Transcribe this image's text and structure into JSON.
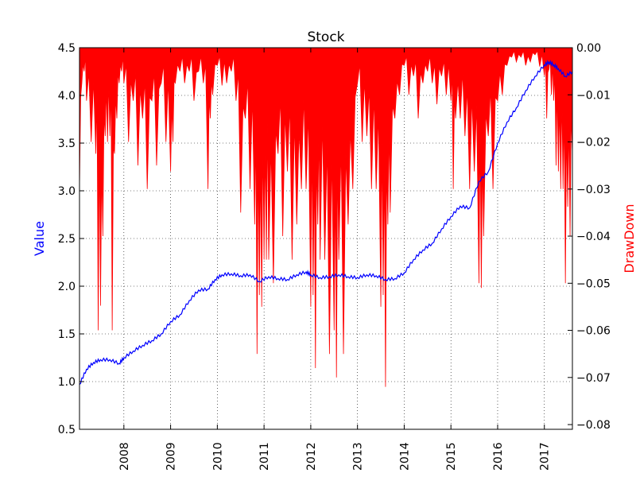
{
  "chart_data": {
    "type": "line",
    "title": "Stock",
    "xlabel": "",
    "ylabel": "Value",
    "y2label": "DrawDown",
    "grid": true,
    "colors": {
      "value": "#0000ff",
      "drawdown": "#ff0000",
      "ylabel": "#0000ff",
      "y2label": "#ff0000"
    },
    "xlim": [
      2007.05,
      2017.6
    ],
    "ylim": [
      0.5,
      4.5
    ],
    "y2lim": [
      -0.081,
      0.0
    ],
    "x_ticks": [
      2008,
      2009,
      2010,
      2011,
      2012,
      2013,
      2014,
      2015,
      2016,
      2017
    ],
    "x_tick_labels": [
      "2008",
      "2009",
      "2010",
      "2011",
      "2012",
      "2013",
      "2014",
      "2015",
      "2016",
      "2017"
    ],
    "y_ticks": [
      0.5,
      1.0,
      1.5,
      2.0,
      2.5,
      3.0,
      3.5,
      4.0,
      4.5
    ],
    "y_tick_labels": [
      "0.5",
      "1.0",
      "1.5",
      "2.0",
      "2.5",
      "3.0",
      "3.5",
      "4.0",
      "4.5"
    ],
    "y2_ticks": [
      0.0,
      -0.01,
      -0.02,
      -0.03,
      -0.04,
      -0.05,
      -0.06,
      -0.07,
      -0.08
    ],
    "y2_tick_labels": [
      "0.00",
      "−0.01",
      "−0.02",
      "−0.03",
      "−0.04",
      "−0.05",
      "−0.06",
      "−0.07",
      "−0.08"
    ],
    "series": [
      {
        "name": "Value",
        "axis": "left",
        "x": [
          2007.05,
          2007.2,
          2007.35,
          2007.5,
          2007.7,
          2007.9,
          2008.0,
          2008.2,
          2008.4,
          2008.6,
          2008.8,
          2009.0,
          2009.2,
          2009.4,
          2009.6,
          2009.8,
          2009.95,
          2010.1,
          2010.3,
          2010.5,
          2010.7,
          2010.9,
          2011.1,
          2011.3,
          2011.5,
          2011.7,
          2011.9,
          2012.0,
          2012.2,
          2012.4,
          2012.6,
          2012.8,
          2013.0,
          2013.2,
          2013.4,
          2013.6,
          2013.8,
          2014.0,
          2014.2,
          2014.4,
          2014.6,
          2014.8,
          2015.0,
          2015.2,
          2015.4,
          2015.6,
          2015.8,
          2016.0,
          2016.2,
          2016.4,
          2016.6,
          2016.8,
          2017.0,
          2017.1,
          2017.2,
          2017.3,
          2017.45,
          2017.6
        ],
        "values": [
          0.97,
          1.13,
          1.2,
          1.23,
          1.23,
          1.19,
          1.25,
          1.32,
          1.38,
          1.43,
          1.5,
          1.63,
          1.7,
          1.85,
          1.96,
          1.97,
          2.07,
          2.12,
          2.13,
          2.11,
          2.12,
          2.05,
          2.1,
          2.08,
          2.07,
          2.12,
          2.15,
          2.12,
          2.09,
          2.1,
          2.12,
          2.1,
          2.09,
          2.12,
          2.11,
          2.07,
          2.08,
          2.14,
          2.28,
          2.38,
          2.45,
          2.6,
          2.73,
          2.84,
          2.82,
          3.1,
          3.2,
          3.5,
          3.72,
          3.87,
          4.05,
          4.2,
          4.32,
          4.35,
          4.32,
          4.28,
          4.2,
          4.25
        ]
      },
      {
        "name": "DrawDown",
        "axis": "right",
        "x": [
          2007.05,
          2007.1,
          2007.15,
          2007.2,
          2007.3,
          2007.4,
          2007.45,
          2007.5,
          2007.55,
          2007.6,
          2007.65,
          2007.7,
          2007.75,
          2007.8,
          2007.85,
          2007.9,
          2007.95,
          2008.0,
          2008.1,
          2008.2,
          2008.3,
          2008.4,
          2008.5,
          2008.6,
          2008.7,
          2008.8,
          2008.9,
          2009.0,
          2009.05,
          2009.1,
          2009.2,
          2009.3,
          2009.4,
          2009.5,
          2009.6,
          2009.7,
          2009.8,
          2009.85,
          2009.9,
          2010.0,
          2010.1,
          2010.2,
          2010.3,
          2010.4,
          2010.5,
          2010.6,
          2010.7,
          2010.8,
          2010.85,
          2010.9,
          2010.95,
          2011.0,
          2011.05,
          2011.1,
          2011.2,
          2011.3,
          2011.4,
          2011.5,
          2011.6,
          2011.7,
          2011.8,
          2011.9,
          2012.0,
          2012.05,
          2012.1,
          2012.15,
          2012.2,
          2012.3,
          2012.4,
          2012.5,
          2012.55,
          2012.6,
          2012.7,
          2012.8,
          2012.9,
          2013.0,
          2013.1,
          2013.2,
          2013.3,
          2013.4,
          2013.5,
          2013.55,
          2013.6,
          2013.65,
          2013.7,
          2013.8,
          2013.9,
          2014.0,
          2014.1,
          2014.2,
          2014.3,
          2014.4,
          2014.5,
          2014.6,
          2014.7,
          2014.8,
          2014.9,
          2015.0,
          2015.05,
          2015.1,
          2015.2,
          2015.3,
          2015.4,
          2015.5,
          2015.6,
          2015.65,
          2015.7,
          2015.8,
          2015.9,
          2016.0,
          2016.1,
          2016.2,
          2016.3,
          2016.4,
          2016.5,
          2016.6,
          2016.7,
          2016.8,
          2016.9,
          2017.0,
          2017.05,
          2017.1,
          2017.15,
          2017.2,
          2017.25,
          2017.3,
          2017.35,
          2017.4,
          2017.45,
          2017.5,
          2017.55,
          2017.6
        ],
        "values": [
          -0.03,
          -0.01,
          -0.005,
          -0.015,
          -0.02,
          -0.03,
          -0.06,
          -0.073,
          -0.04,
          -0.025,
          -0.02,
          -0.025,
          -0.06,
          -0.03,
          -0.015,
          -0.01,
          -0.005,
          -0.01,
          -0.02,
          -0.015,
          -0.025,
          -0.02,
          -0.03,
          -0.015,
          -0.025,
          -0.01,
          -0.02,
          -0.035,
          -0.02,
          -0.01,
          -0.005,
          -0.01,
          -0.005,
          -0.015,
          -0.005,
          -0.01,
          -0.03,
          -0.02,
          -0.01,
          -0.005,
          -0.008,
          -0.01,
          -0.005,
          -0.015,
          -0.035,
          -0.02,
          -0.03,
          -0.05,
          -0.065,
          -0.07,
          -0.055,
          -0.06,
          -0.045,
          -0.06,
          -0.05,
          -0.03,
          -0.04,
          -0.035,
          -0.045,
          -0.05,
          -0.03,
          -0.04,
          -0.055,
          -0.07,
          -0.068,
          -0.05,
          -0.045,
          -0.06,
          -0.065,
          -0.08,
          -0.07,
          -0.06,
          -0.065,
          -0.05,
          -0.03,
          -0.01,
          -0.02,
          -0.025,
          -0.03,
          -0.04,
          -0.055,
          -0.07,
          -0.072,
          -0.05,
          -0.035,
          -0.02,
          -0.01,
          -0.005,
          -0.01,
          -0.008,
          -0.015,
          -0.01,
          -0.005,
          -0.01,
          -0.012,
          -0.008,
          -0.01,
          -0.015,
          -0.03,
          -0.02,
          -0.015,
          -0.025,
          -0.03,
          -0.035,
          -0.05,
          -0.068,
          -0.04,
          -0.025,
          -0.03,
          -0.015,
          -0.01,
          -0.005,
          -0.002,
          -0.004,
          -0.002,
          -0.005,
          -0.003,
          -0.002,
          -0.004,
          -0.008,
          -0.015,
          -0.006,
          -0.01,
          -0.015,
          -0.025,
          -0.035,
          -0.03,
          -0.04,
          -0.05,
          -0.045,
          -0.04,
          -0.03
        ]
      }
    ]
  }
}
